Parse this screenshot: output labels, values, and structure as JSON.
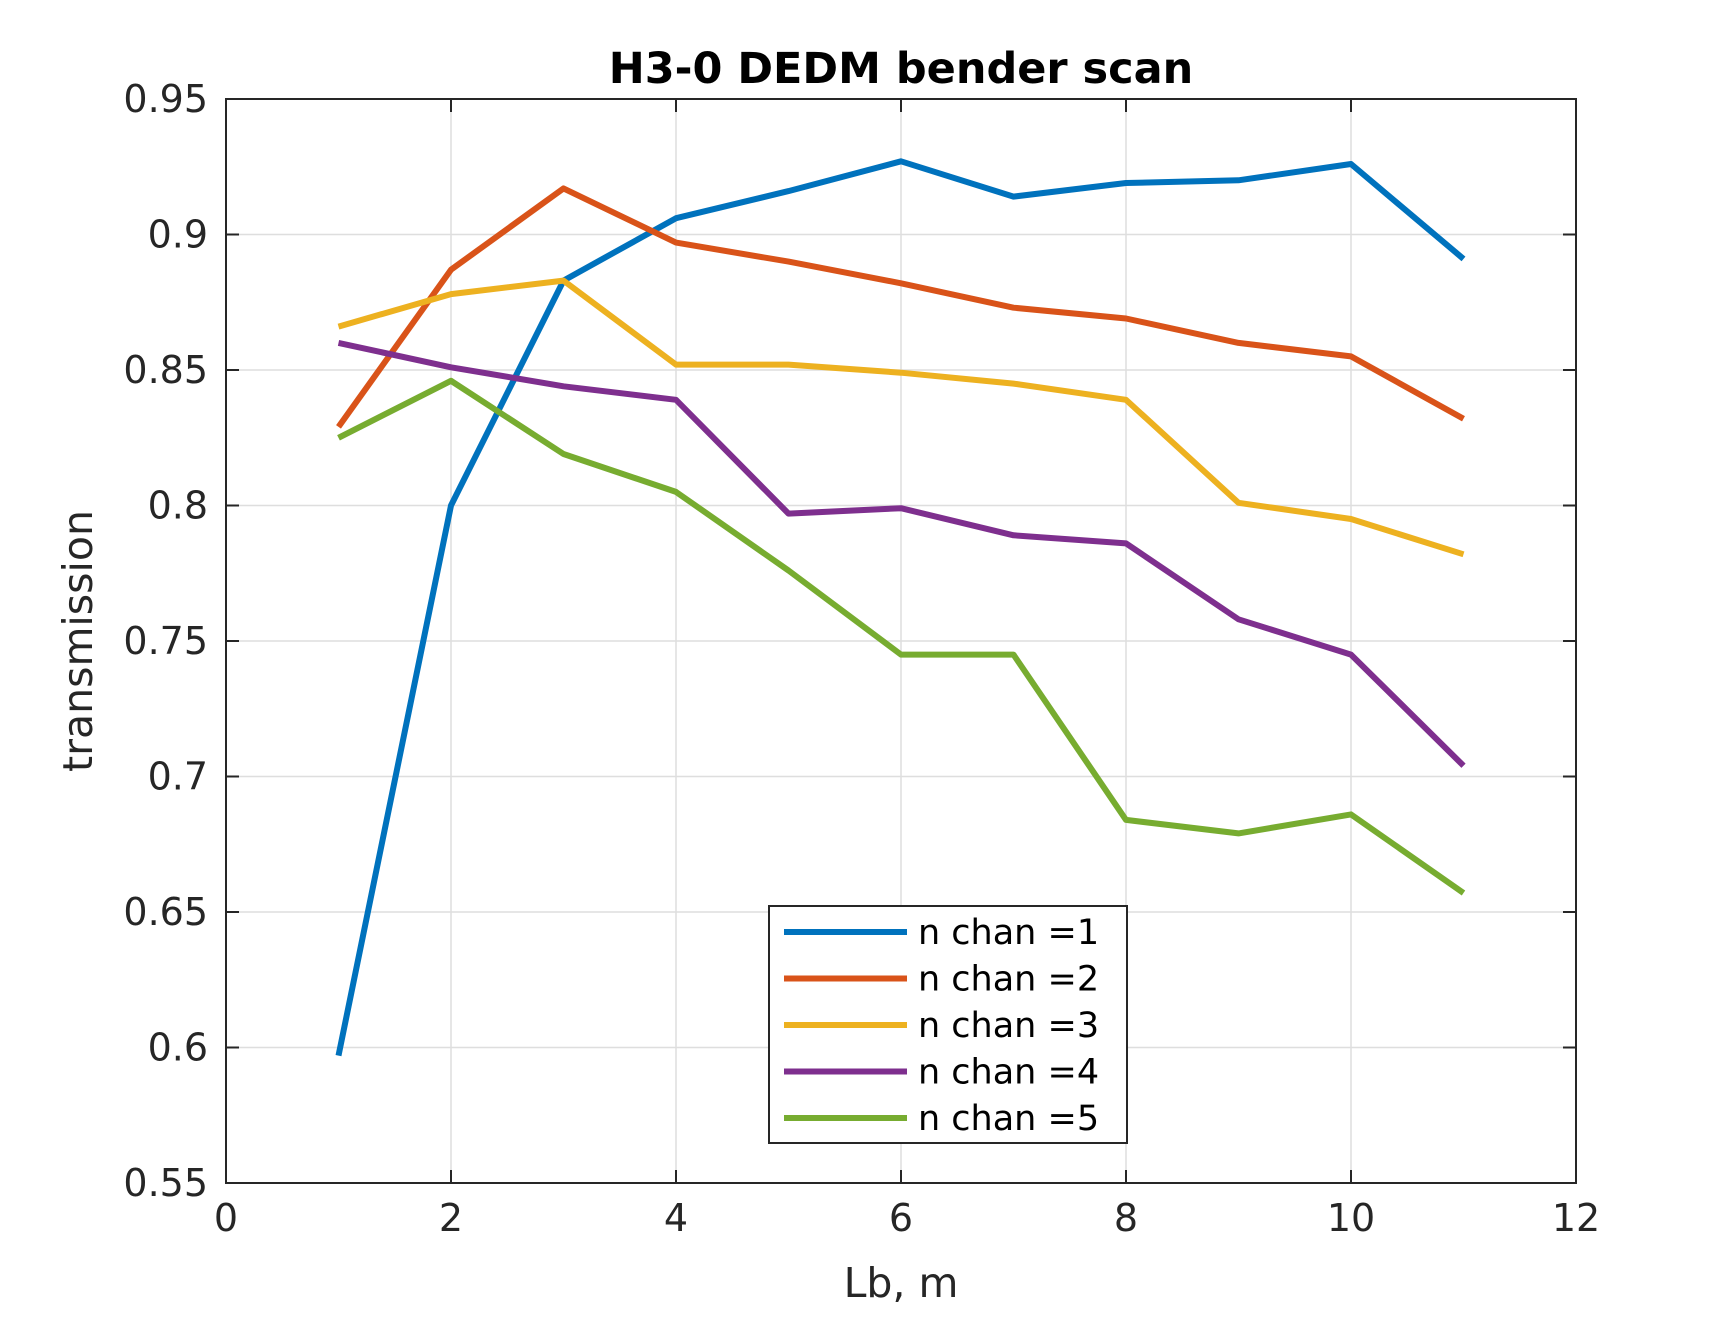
{
  "chart_data": {
    "type": "line",
    "title": "H3-0 DEDM bender scan",
    "xlabel": "Lb, m",
    "ylabel": "transmission",
    "xlim": [
      0,
      12
    ],
    "ylim": [
      0.55,
      0.95
    ],
    "xticks": [
      0,
      2,
      4,
      6,
      8,
      10,
      12
    ],
    "yticks": [
      0.55,
      0.6,
      0.65,
      0.7,
      0.75,
      0.8,
      0.85,
      0.9,
      0.95
    ],
    "xtick_labels": [
      "0",
      "2",
      "4",
      "6",
      "8",
      "10",
      "12"
    ],
    "ytick_labels": [
      "0.55",
      "0.6",
      "0.65",
      "0.7",
      "0.75",
      "0.8",
      "0.85",
      "0.9",
      "0.95"
    ],
    "grid": true,
    "legend_position": "bottom-center",
    "x": [
      1,
      2,
      3,
      4,
      5,
      6,
      7,
      8,
      9,
      10,
      11
    ],
    "series": [
      {
        "name": "n chan =1",
        "color": "#0072BD",
        "values": [
          0.597,
          0.8,
          0.883,
          0.906,
          0.916,
          0.927,
          0.914,
          0.919,
          0.92,
          0.926,
          0.891
        ]
      },
      {
        "name": "n chan =2",
        "color": "#D95319",
        "values": [
          0.829,
          0.887,
          0.917,
          0.897,
          0.89,
          0.882,
          0.873,
          0.869,
          0.86,
          0.855,
          0.832
        ]
      },
      {
        "name": "n chan =3",
        "color": "#EDB120",
        "values": [
          0.866,
          0.878,
          0.883,
          0.852,
          0.852,
          0.849,
          0.845,
          0.839,
          0.801,
          0.795,
          0.782
        ]
      },
      {
        "name": "n chan =4",
        "color": "#7E2F8E",
        "values": [
          0.86,
          0.851,
          0.844,
          0.839,
          0.797,
          0.799,
          0.789,
          0.786,
          0.758,
          0.745,
          0.704
        ]
      },
      {
        "name": "n chan =5",
        "color": "#77AC30",
        "values": [
          0.825,
          0.846,
          0.819,
          0.805,
          0.776,
          0.745,
          0.745,
          0.684,
          0.679,
          0.686,
          0.657
        ]
      }
    ]
  }
}
